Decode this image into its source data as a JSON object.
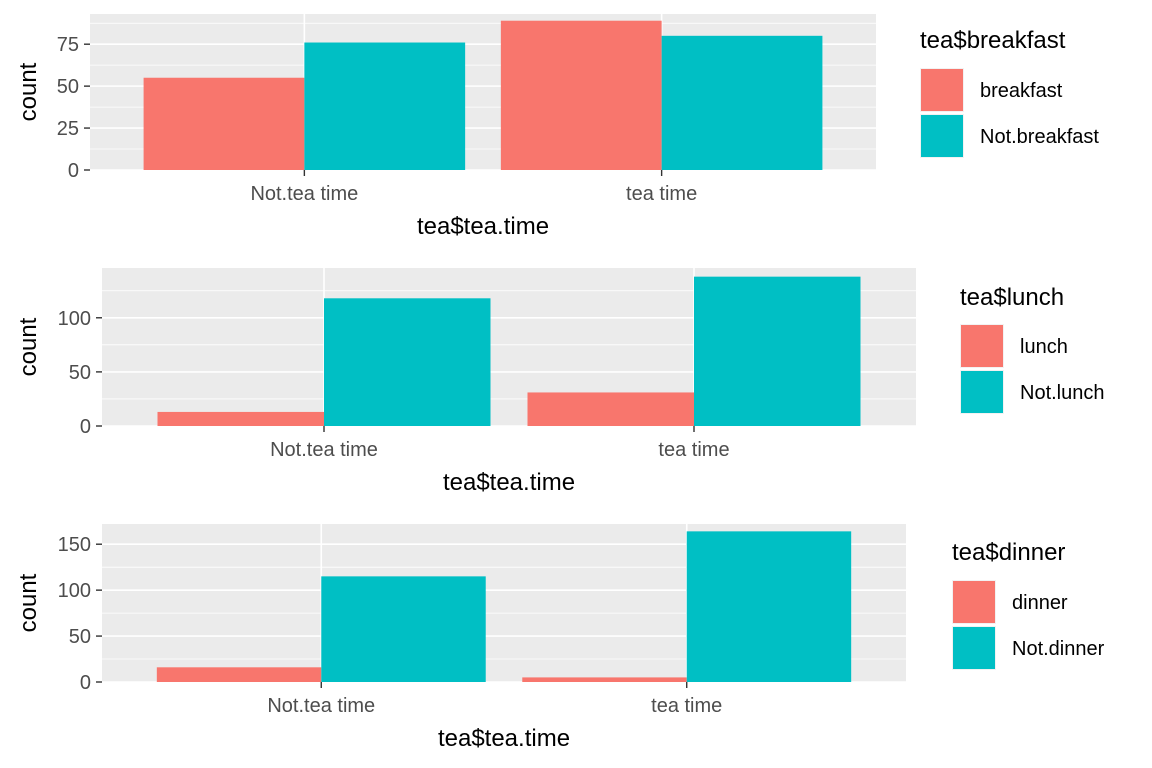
{
  "chart_data": [
    {
      "type": "bar",
      "xlabel": "tea$tea.time",
      "ylabel": "count",
      "categories": [
        "Not.tea time",
        "tea time"
      ],
      "ylim": [
        0,
        93
      ],
      "yticks": [
        0,
        25,
        50,
        75
      ],
      "grid": true,
      "legend": {
        "title": "tea$breakfast",
        "placement": "right"
      },
      "series": [
        {
          "name": "breakfast",
          "color": "#F8766D",
          "values": [
            55,
            89
          ]
        },
        {
          "name": "Not.breakfast",
          "color": "#00BFC4",
          "values": [
            76,
            80
          ]
        }
      ]
    },
    {
      "type": "bar",
      "xlabel": "tea$tea.time",
      "ylabel": "count",
      "categories": [
        "Not.tea time",
        "tea time"
      ],
      "ylim": [
        0,
        146
      ],
      "yticks": [
        0,
        50,
        100
      ],
      "grid": true,
      "legend": {
        "title": "tea$lunch",
        "placement": "right"
      },
      "series": [
        {
          "name": "lunch",
          "color": "#F8766D",
          "values": [
            13,
            31
          ]
        },
        {
          "name": "Not.lunch",
          "color": "#00BFC4",
          "values": [
            118,
            138
          ]
        }
      ]
    },
    {
      "type": "bar",
      "xlabel": "tea$tea.time",
      "ylabel": "count",
      "categories": [
        "Not.tea time",
        "tea time"
      ],
      "ylim": [
        0,
        172
      ],
      "yticks": [
        0,
        50,
        100,
        150
      ],
      "grid": true,
      "legend": {
        "title": "tea$dinner",
        "placement": "right"
      },
      "series": [
        {
          "name": "dinner",
          "color": "#F8766D",
          "values": [
            16,
            5
          ]
        },
        {
          "name": "Not.dinner",
          "color": "#00BFC4",
          "values": [
            115,
            164
          ]
        }
      ]
    }
  ]
}
